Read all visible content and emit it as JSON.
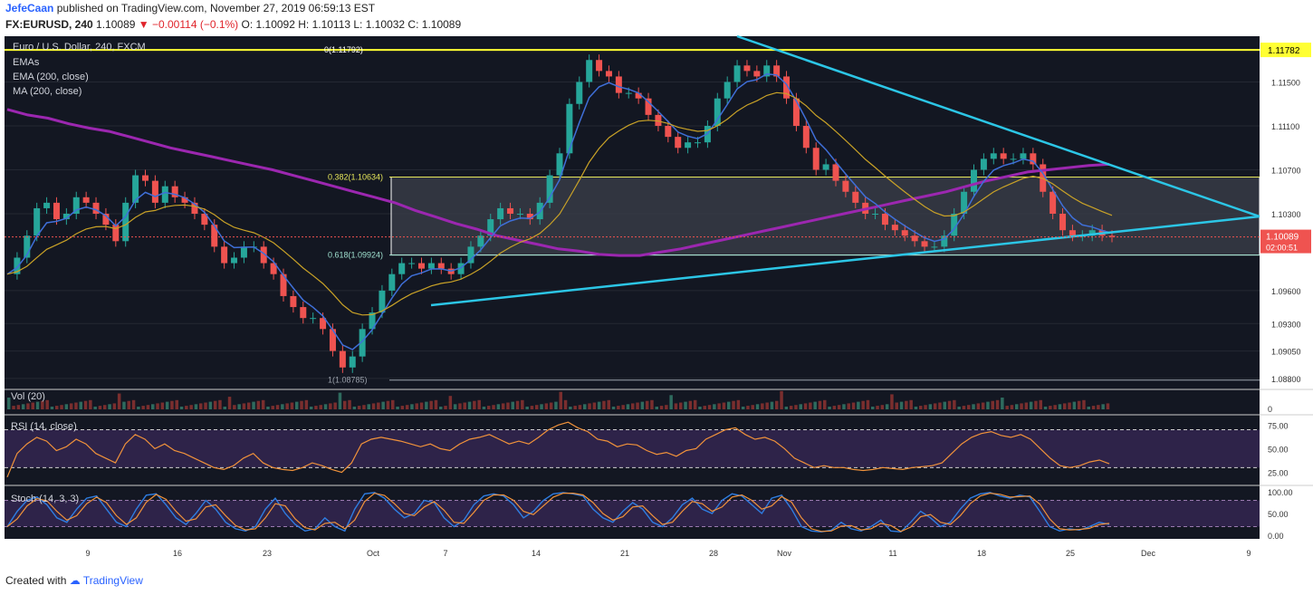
{
  "header": {
    "author": "JefeCaan",
    "published_text": "published on TradingView.com, November 27, 2019 06:59:13 EST",
    "symbol": "FX:EURUSD, 240",
    "last": "1.10089",
    "change": "▼ −0.00114 (−0.1%)",
    "ohlc": "O: 1.10092  H: 1.10113  L: 1.10032  C: 1.10089"
  },
  "legend": {
    "title": "Euro / U.S. Dollar, 240, FXCM",
    "line1": "EMAs",
    "line2": "EMA (200, close)",
    "line3": "MA (200, close)"
  },
  "footer": {
    "created_with": "Created with",
    "brand": "TradingView"
  },
  "colors": {
    "up": "#26a69a",
    "down": "#ef5350",
    "ema200": "#9c27b0",
    "trend": "#2cc6e6",
    "fib": "#ffff33",
    "bg": "#131722",
    "box": "#6b6f7a"
  },
  "chart_data": [
    {
      "type": "line",
      "name": "price",
      "ylim": [
        1.087,
        1.119
      ],
      "y_ticks": [
        "1.11500",
        "1.11100",
        "1.10700",
        "1.10300",
        "1.09600",
        "1.09300",
        "1.09050",
        "1.08800"
      ],
      "x_ticks": [
        "9",
        "16",
        "23",
        "Oct",
        "7",
        "14",
        "21",
        "28",
        "Nov",
        "11",
        "18",
        "25",
        "Dec",
        "9"
      ],
      "price_label": "1.10089",
      "countdown": "02:00:51",
      "top_label": "1.11782",
      "close": [
        1.0975,
        1.099,
        1.101,
        1.1035,
        1.104,
        1.1025,
        1.103,
        1.1045,
        1.104,
        1.103,
        1.102,
        1.1005,
        1.104,
        1.1065,
        1.106,
        1.104,
        1.1055,
        1.1045,
        1.104,
        1.103,
        1.102,
        1.1,
        1.0985,
        1.099,
        1.1,
        1.1,
        1.0985,
        1.0975,
        1.0955,
        1.0945,
        1.0935,
        1.0935,
        1.0925,
        1.0905,
        1.089,
        1.09,
        1.0925,
        1.094,
        1.096,
        1.0975,
        1.0985,
        1.0985,
        1.098,
        1.0985,
        1.098,
        1.0975,
        1.0985,
        1.1,
        1.101,
        1.1025,
        1.1035,
        1.103,
        1.103,
        1.1025,
        1.104,
        1.1065,
        1.1085,
        1.113,
        1.115,
        1.117,
        1.116,
        1.1155,
        1.114,
        1.114,
        1.1135,
        1.112,
        1.111,
        1.11,
        1.109,
        1.1095,
        1.1095,
        1.111,
        1.1135,
        1.115,
        1.1165,
        1.116,
        1.1155,
        1.1165,
        1.1155,
        1.1135,
        1.111,
        1.109,
        1.107,
        1.1075,
        1.106,
        1.105,
        1.104,
        1.103,
        1.103,
        1.102,
        1.1015,
        1.101,
        1.1005,
        1.1,
        1.1,
        1.101,
        1.103,
        1.105,
        1.107,
        1.108,
        1.1085,
        1.108,
        1.108,
        1.1085,
        1.1075,
        1.105,
        1.103,
        1.1015,
        1.101,
        1.101,
        1.1015,
        1.101,
        1.1009
      ],
      "ema200": [
        1.1125,
        1.112,
        1.1117,
        1.1112,
        1.1108,
        1.1105,
        1.11,
        1.1095,
        1.109,
        1.1086,
        1.1082,
        1.1078,
        1.1074,
        1.107,
        1.1065,
        1.106,
        1.1055,
        1.105,
        1.1045,
        1.104,
        1.1033,
        1.1027,
        1.1021,
        1.1016,
        1.101,
        1.1006,
        1.1002,
        1.0998,
        1.0996,
        1.0993,
        1.0992,
        1.0992,
        1.0995,
        1.0998,
        1.1002,
        1.1006,
        1.101,
        1.1014,
        1.1018,
        1.1022,
        1.1026,
        1.103,
        1.1034,
        1.1038,
        1.1042,
        1.1046,
        1.105,
        1.1055,
        1.106,
        1.1064,
        1.1068,
        1.107,
        1.1072,
        1.1074,
        1.1075
      ],
      "fib_levels": [
        {
          "label": "0(1.11792)",
          "value": 1.11792
        },
        {
          "label": "0.382(1.10634)",
          "value": 1.10634
        },
        {
          "label": "0.618(1.09924)",
          "value": 1.09924
        },
        {
          "label": "1(1.08785)",
          "value": 1.08785
        }
      ]
    },
    {
      "type": "bar",
      "name": "Volume",
      "label": "Vol (20)",
      "zero_label": "0"
    },
    {
      "type": "line",
      "name": "RSI",
      "label": "RSI (14, close)",
      "ylim": [
        15,
        82
      ],
      "y_ticks": [
        "75.00",
        "50.00",
        "25.00"
      ],
      "values": [
        20,
        45,
        55,
        62,
        58,
        48,
        52,
        60,
        55,
        45,
        40,
        35,
        55,
        65,
        60,
        50,
        55,
        48,
        45,
        40,
        35,
        30,
        28,
        32,
        40,
        45,
        35,
        30,
        28,
        27,
        30,
        35,
        32,
        28,
        25,
        35,
        55,
        60,
        62,
        60,
        58,
        55,
        52,
        55,
        50,
        48,
        55,
        60,
        62,
        65,
        60,
        55,
        58,
        55,
        62,
        70,
        75,
        78,
        72,
        68,
        60,
        58,
        52,
        55,
        54,
        48,
        44,
        46,
        42,
        48,
        50,
        60,
        65,
        70,
        72,
        65,
        60,
        62,
        58,
        50,
        40,
        35,
        30,
        32,
        30,
        30,
        28,
        27,
        28,
        30,
        29,
        28,
        30,
        31,
        32,
        35,
        45,
        55,
        62,
        66,
        68,
        64,
        62,
        65,
        60,
        50,
        40,
        32,
        30,
        32,
        36,
        38,
        34
      ]
    },
    {
      "type": "line",
      "name": "Stoch",
      "label": "Stoch (14, 3, 3)",
      "ylim": [
        -8,
        106
      ],
      "y_ticks": [
        "100.00",
        "50.00",
        "0.00"
      ],
      "values": [
        20,
        55,
        80,
        88,
        70,
        40,
        30,
        60,
        85,
        90,
        60,
        30,
        20,
        60,
        92,
        95,
        70,
        40,
        25,
        50,
        80,
        60,
        30,
        15,
        10,
        20,
        60,
        85,
        50,
        25,
        10,
        15,
        40,
        20,
        10,
        60,
        95,
        98,
        85,
        60,
        40,
        50,
        80,
        75,
        40,
        20,
        35,
        70,
        90,
        95,
        90,
        70,
        40,
        55,
        80,
        95,
        98,
        95,
        90,
        60,
        40,
        30,
        55,
        75,
        60,
        30,
        20,
        40,
        70,
        85,
        60,
        50,
        80,
        95,
        90,
        70,
        50,
        85,
        92,
        60,
        20,
        10,
        8,
        12,
        30,
        15,
        10,
        20,
        35,
        10,
        8,
        30,
        55,
        40,
        20,
        30,
        60,
        85,
        95,
        98,
        90,
        85,
        92,
        88,
        55,
        20,
        10,
        15,
        12,
        20,
        30,
        25
      ]
    }
  ]
}
